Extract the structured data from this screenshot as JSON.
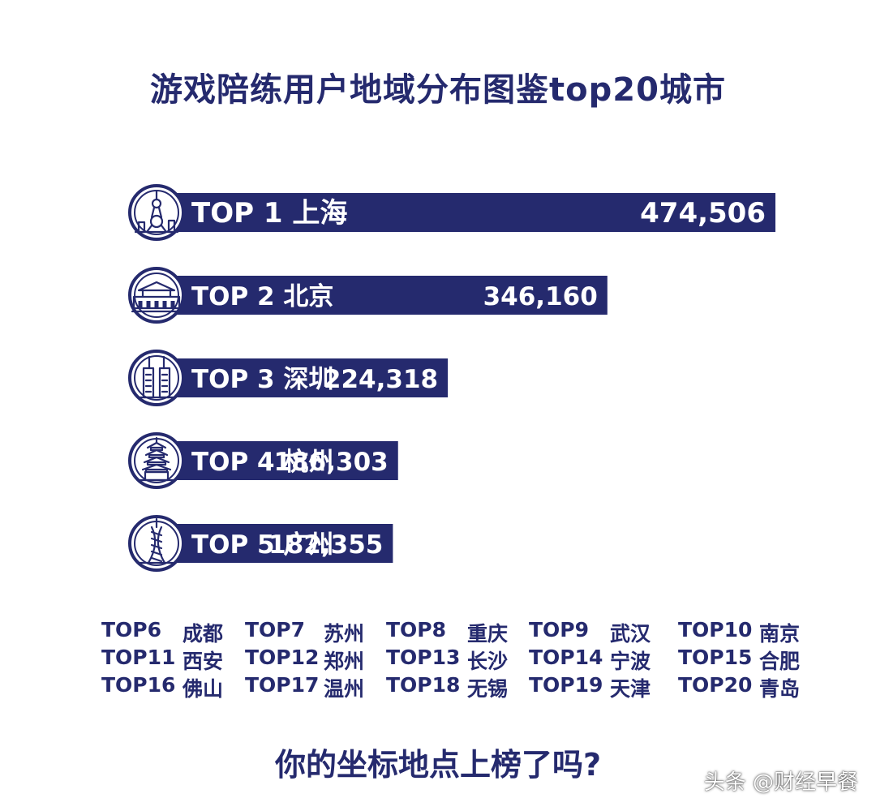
{
  "title": "游戏陪练用户地域分布图鉴top20城市",
  "colors": {
    "bar": "#252a6e",
    "text_on_bar": "#ffffff",
    "background": "#ffffff"
  },
  "chart_data": {
    "type": "bar",
    "orientation": "horizontal",
    "title": "游戏陪练用户地域分布图鉴top20城市",
    "categories": [
      "TOP 1 上海",
      "TOP 2 北京",
      "TOP 3 深圳",
      "TOP 4 杭州",
      "TOP 5 广州"
    ],
    "values": [
      474506,
      346160,
      224318,
      186303,
      182355
    ],
    "value_labels": [
      "474,506",
      "346,160",
      "224,318",
      "186,303",
      "182,355"
    ],
    "icons": [
      "oriental-pearl-tower-icon",
      "tiananmen-icon",
      "twin-towers-icon",
      "pagoda-icon",
      "canton-tower-icon"
    ],
    "grid": false,
    "legend": "none"
  },
  "others": [
    [
      {
        "rank": "TOP6",
        "city": "成都"
      },
      {
        "rank": "TOP7",
        "city": "苏州"
      },
      {
        "rank": "TOP8",
        "city": "重庆"
      },
      {
        "rank": "TOP9",
        "city": "武汉"
      },
      {
        "rank": "TOP10",
        "city": "南京"
      }
    ],
    [
      {
        "rank": "TOP11",
        "city": "西安"
      },
      {
        "rank": "TOP12",
        "city": "郑州"
      },
      {
        "rank": "TOP13",
        "city": "长沙"
      },
      {
        "rank": "TOP14",
        "city": "宁波"
      },
      {
        "rank": "TOP15",
        "city": "合肥"
      }
    ],
    [
      {
        "rank": "TOP16",
        "city": "佛山"
      },
      {
        "rank": "TOP17",
        "city": "温州"
      },
      {
        "rank": "TOP18",
        "city": "无锡"
      },
      {
        "rank": "TOP19",
        "city": "天津"
      },
      {
        "rank": "TOP20",
        "city": "青岛"
      }
    ]
  ],
  "question": "你的坐标地点上榜了吗?",
  "watermark": "头条 @财经早餐"
}
